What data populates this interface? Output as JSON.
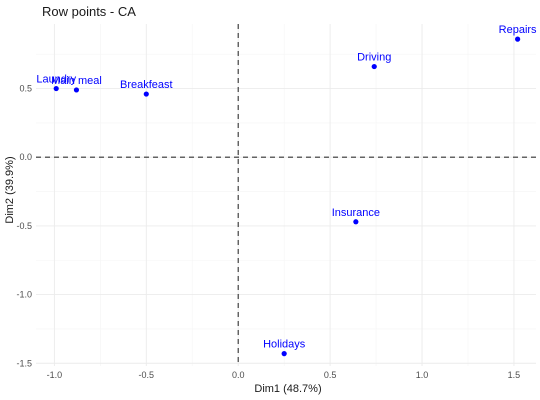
{
  "chart_data": {
    "type": "scatter",
    "title": "Row points - CA",
    "xlabel": "Dim1 (48.7%)",
    "ylabel": "Dim2 (39.9%)",
    "xlim": [
      -1.1,
      1.62
    ],
    "ylim": [
      -1.52,
      0.97
    ],
    "x_ticks": [
      -1.0,
      -0.5,
      0.0,
      0.5,
      1.0,
      1.5
    ],
    "x_tick_labels": [
      "-1.0",
      "-0.5",
      "0.0",
      "0.5",
      "1.0",
      "1.5"
    ],
    "y_ticks": [
      -1.5,
      -1.0,
      -0.5,
      0.0,
      0.5
    ],
    "y_tick_labels": [
      "-1.5",
      "-1.0",
      "-0.5",
      "0.0",
      "0.5"
    ],
    "grid": true,
    "reference_lines": {
      "x": 0,
      "y": 0,
      "style": "dashed"
    },
    "point_color": "#0000ff",
    "points": [
      {
        "label": "Laundry",
        "x": -0.99,
        "y": 0.5
      },
      {
        "label": "Main meal",
        "x": -0.88,
        "y": 0.49
      },
      {
        "label": "Breakfeast",
        "x": -0.5,
        "y": 0.46
      },
      {
        "label": "Driving",
        "x": 0.74,
        "y": 0.66
      },
      {
        "label": "Repairs",
        "x": 1.52,
        "y": 0.86
      },
      {
        "label": "Insurance",
        "x": 0.64,
        "y": -0.47
      },
      {
        "label": "Holidays",
        "x": 0.25,
        "y": -1.43
      }
    ]
  }
}
